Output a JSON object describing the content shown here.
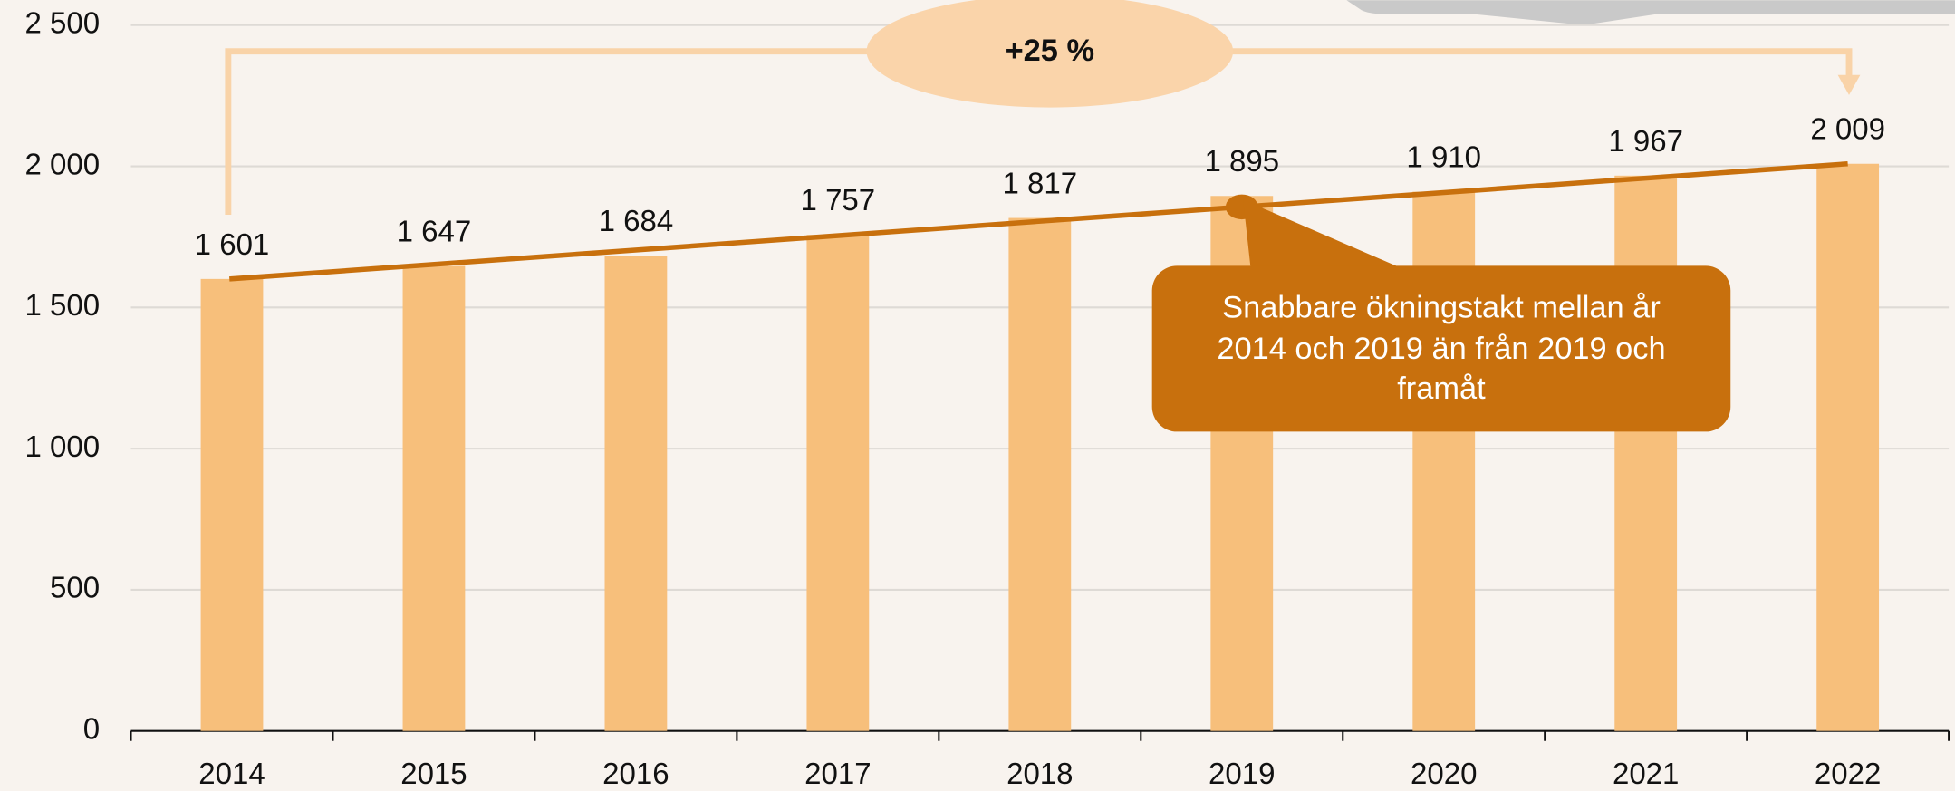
{
  "chart_data": {
    "type": "bar",
    "categories": [
      "2014",
      "2015",
      "2016",
      "2017",
      "2018",
      "2019",
      "2020",
      "2021",
      "2022"
    ],
    "values": [
      1601,
      1647,
      1684,
      1757,
      1817,
      1895,
      1910,
      1967,
      2009
    ],
    "value_labels": [
      "1 601",
      "1 647",
      "1 684",
      "1 757",
      "1 817",
      "1 895",
      "1 910",
      "1 967",
      "2 009"
    ],
    "color": "#f7bf7b",
    "trend_color": "#c8700d",
    "ylim": [
      0,
      2500
    ],
    "yticks": [
      0,
      500,
      {
        "value": 1000,
        "label": "1 000"
      },
      {
        "value": 1500,
        "label": "1 500"
      },
      {
        "value": 2000,
        "label": "2 000"
      },
      {
        "value": 2500,
        "label": "2 500"
      }
    ],
    "grid": true,
    "annotations": {
      "change": "+25 %",
      "callout": [
        "Snabbare ökningstakt mellan år",
        "2014 och 2019 än från 2019 och",
        "framåt"
      ]
    }
  }
}
